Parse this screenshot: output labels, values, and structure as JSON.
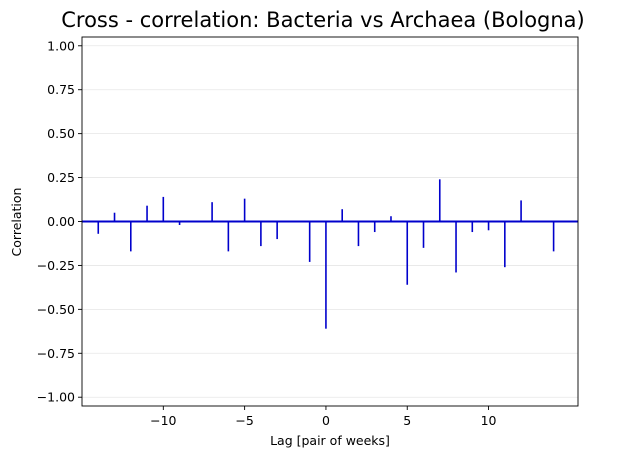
{
  "chart_data": {
    "type": "bar",
    "title": "Cross - correlation: Bacteria vs Archaea (Bologna)",
    "xlabel": "Lag [pair of weeks]",
    "ylabel": "Correlation",
    "xlim": [
      -15,
      15.5
    ],
    "ylim": [
      -1.05,
      1.05
    ],
    "xticks": [
      -10,
      -5,
      0,
      5,
      10
    ],
    "xtick_labels": [
      "−10",
      "−5",
      "0",
      "5",
      "10"
    ],
    "yticks": [
      -1.0,
      -0.75,
      -0.5,
      -0.25,
      0.0,
      0.25,
      0.5,
      0.75,
      1.0
    ],
    "ytick_labels": [
      "−1.00",
      "−0.75",
      "−0.50",
      "−0.25",
      "0.00",
      "0.25",
      "0.50",
      "0.75",
      "1.00"
    ],
    "grid": "horizontal",
    "color": "#0000cc",
    "x": [
      -14,
      -13,
      -12,
      -11,
      -10,
      -9,
      -8,
      -7,
      -6,
      -5,
      -4,
      -3,
      -2,
      -1,
      0,
      1,
      2,
      3,
      4,
      5,
      6,
      7,
      8,
      9,
      10,
      11,
      12,
      13,
      14
    ],
    "values": [
      -0.07,
      0.05,
      -0.17,
      0.09,
      0.14,
      -0.02,
      0.0,
      0.11,
      -0.17,
      0.13,
      -0.14,
      -0.1,
      0.0,
      -0.23,
      -0.61,
      0.07,
      -0.14,
      -0.06,
      0.03,
      -0.36,
      -0.15,
      0.24,
      -0.29,
      -0.06,
      -0.05,
      -0.26,
      0.12,
      0.0,
      -0.17
    ]
  }
}
